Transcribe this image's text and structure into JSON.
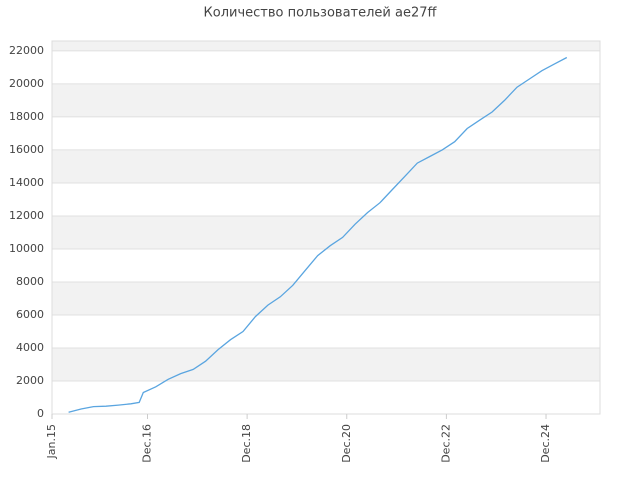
{
  "chart_data": {
    "type": "line",
    "title": "Количество пользователей ae27ff",
    "x": [
      "2015-05",
      "2015-08",
      "2015-11",
      "2016-02",
      "2016-05",
      "2016-08",
      "2016-10",
      "2016-11",
      "2017-02",
      "2017-05",
      "2017-08",
      "2017-11",
      "2018-02",
      "2018-05",
      "2018-08",
      "2018-11",
      "2019-02",
      "2019-05",
      "2019-08",
      "2019-11",
      "2020-02",
      "2020-05",
      "2020-08",
      "2020-11",
      "2021-02",
      "2021-05",
      "2021-08",
      "2021-11",
      "2022-02",
      "2022-05",
      "2022-08",
      "2022-11",
      "2023-02",
      "2023-05",
      "2023-08",
      "2023-11",
      "2024-02",
      "2024-05",
      "2024-08",
      "2024-11",
      "2025-02",
      "2025-05"
    ],
    "series": [
      {
        "name": "ae27ff",
        "color": "#5aa5e0",
        "values": [
          100,
          300,
          450,
          470,
          540,
          620,
          700,
          1300,
          1650,
          2100,
          2450,
          2700,
          3200,
          3900,
          4500,
          5000,
          5900,
          6600,
          7100,
          7800,
          8700,
          9600,
          10200,
          10700,
          11500,
          12200,
          12800,
          13600,
          14400,
          15200,
          15600,
          16000,
          16500,
          17300,
          17800,
          18300,
          19000,
          19800,
          20300,
          20800,
          21200,
          21600
        ]
      }
    ],
    "xlim": [
      "2015-01",
      "2026-01"
    ],
    "xticks": [
      {
        "value": "2015-01",
        "label": "Jan.15"
      },
      {
        "value": "2016-12",
        "label": "Dec.16"
      },
      {
        "value": "2018-12",
        "label": "Dec.18"
      },
      {
        "value": "2020-12",
        "label": "Dec.20"
      },
      {
        "value": "2022-12",
        "label": "Dec.22"
      },
      {
        "value": "2024-12",
        "label": "Dec.24"
      }
    ],
    "ylim": [
      0,
      22600
    ],
    "yticks": [
      0,
      2000,
      4000,
      6000,
      8000,
      10000,
      12000,
      14000,
      16000,
      18000,
      20000,
      22000
    ],
    "grid": true
  }
}
